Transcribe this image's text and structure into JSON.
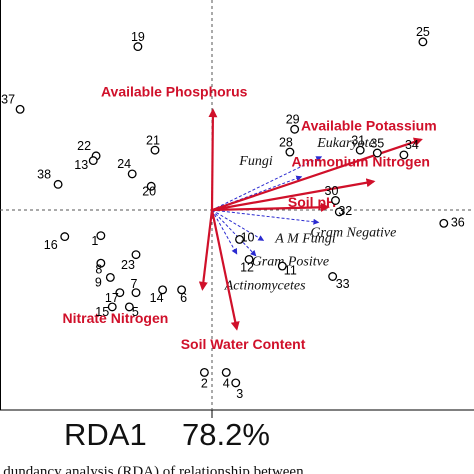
{
  "chart_data": {
    "type": "scatter",
    "xlabel": "RDA1",
    "xlabel_value": "78.2%",
    "caption_fragment": "...dundancy analysis (RDA) of relationship between...",
    "grid": false,
    "xlim": [
      -2.15,
      2.65
    ],
    "ylim": [
      -2.0,
      2.05
    ],
    "sites": [
      {
        "label": "19",
        "x": -0.78,
        "y": 1.72
      },
      {
        "label": "25",
        "x": 2.22,
        "y": 1.77
      },
      {
        "label": "37",
        "x": -2.02,
        "y": 1.06
      },
      {
        "label": "22",
        "x": -1.22,
        "y": 0.57
      },
      {
        "label": "13",
        "x": -1.25,
        "y": 0.52
      },
      {
        "label": "21",
        "x": -0.6,
        "y": 0.63
      },
      {
        "label": "24",
        "x": -0.84,
        "y": 0.38
      },
      {
        "label": "38",
        "x": -1.62,
        "y": 0.27
      },
      {
        "label": "20",
        "x": -0.64,
        "y": 0.25
      },
      {
        "label": "29",
        "x": 0.87,
        "y": 0.85
      },
      {
        "label": "28",
        "x": 0.82,
        "y": 0.61
      },
      {
        "label": "31",
        "x": 1.56,
        "y": 0.63
      },
      {
        "label": "35",
        "x": 1.74,
        "y": 0.6
      },
      {
        "label": "34",
        "x": 2.02,
        "y": 0.58
      },
      {
        "label": "30",
        "x": 1.3,
        "y": 0.1
      },
      {
        "label": "32",
        "x": 1.34,
        "y": -0.02
      },
      {
        "label": "36",
        "x": 2.44,
        "y": -0.14
      },
      {
        "label": "16",
        "x": -1.55,
        "y": -0.28
      },
      {
        "label": "1",
        "x": -1.17,
        "y": -0.27
      },
      {
        "label": "23",
        "x": -0.8,
        "y": -0.47
      },
      {
        "label": "10",
        "x": 0.29,
        "y": -0.31
      },
      {
        "label": "12",
        "x": 0.39,
        "y": -0.52
      },
      {
        "label": "11",
        "x": 0.74,
        "y": -0.59
      },
      {
        "label": "33",
        "x": 1.27,
        "y": -0.7
      },
      {
        "label": "8",
        "x": -1.17,
        "y": -0.56
      },
      {
        "label": "9",
        "x": -1.07,
        "y": -0.71
      },
      {
        "label": "17",
        "x": -0.97,
        "y": -0.87
      },
      {
        "label": "7",
        "x": -0.8,
        "y": -0.87
      },
      {
        "label": "14",
        "x": -0.52,
        "y": -0.84
      },
      {
        "label": "6",
        "x": -0.32,
        "y": -0.84
      },
      {
        "label": "15",
        "x": -1.05,
        "y": -1.02
      },
      {
        "label": "5",
        "x": -0.87,
        "y": -1.02
      },
      {
        "label": "2",
        "x": -0.08,
        "y": -1.71
      },
      {
        "label": "4",
        "x": 0.15,
        "y": -1.71
      },
      {
        "label": "3",
        "x": 0.25,
        "y": -1.82
      }
    ],
    "env_vectors": [
      {
        "label": "Available Phosphorus",
        "x": 0.01,
        "y": 1.05
      },
      {
        "label": "Available Potassium",
        "x": 2.2,
        "y": 0.74
      },
      {
        "label": "Ammonium Nitrogen",
        "x": 1.7,
        "y": 0.3
      },
      {
        "label": "Soil pH",
        "x": 1.22,
        "y": 0.03
      },
      {
        "label": "Nitrate Nitrogen",
        "x": -0.1,
        "y": -0.83
      },
      {
        "label": "Soil Water Content",
        "x": 0.26,
        "y": -1.25
      }
    ],
    "species_vectors": [
      {
        "label": "Fungi",
        "x": 0.94,
        "y": 0.35
      },
      {
        "label": "Eukaryote",
        "x": 1.15,
        "y": 0.56
      },
      {
        "label": "Gram Negative",
        "x": 1.12,
        "y": -0.13
      },
      {
        "label": "A M Fungi",
        "x": 0.54,
        "y": -0.32
      },
      {
        "label": "Gram Positve",
        "x": 0.46,
        "y": -0.48
      },
      {
        "label": "Actinomycetes",
        "x": 0.26,
        "y": -0.46
      }
    ]
  }
}
